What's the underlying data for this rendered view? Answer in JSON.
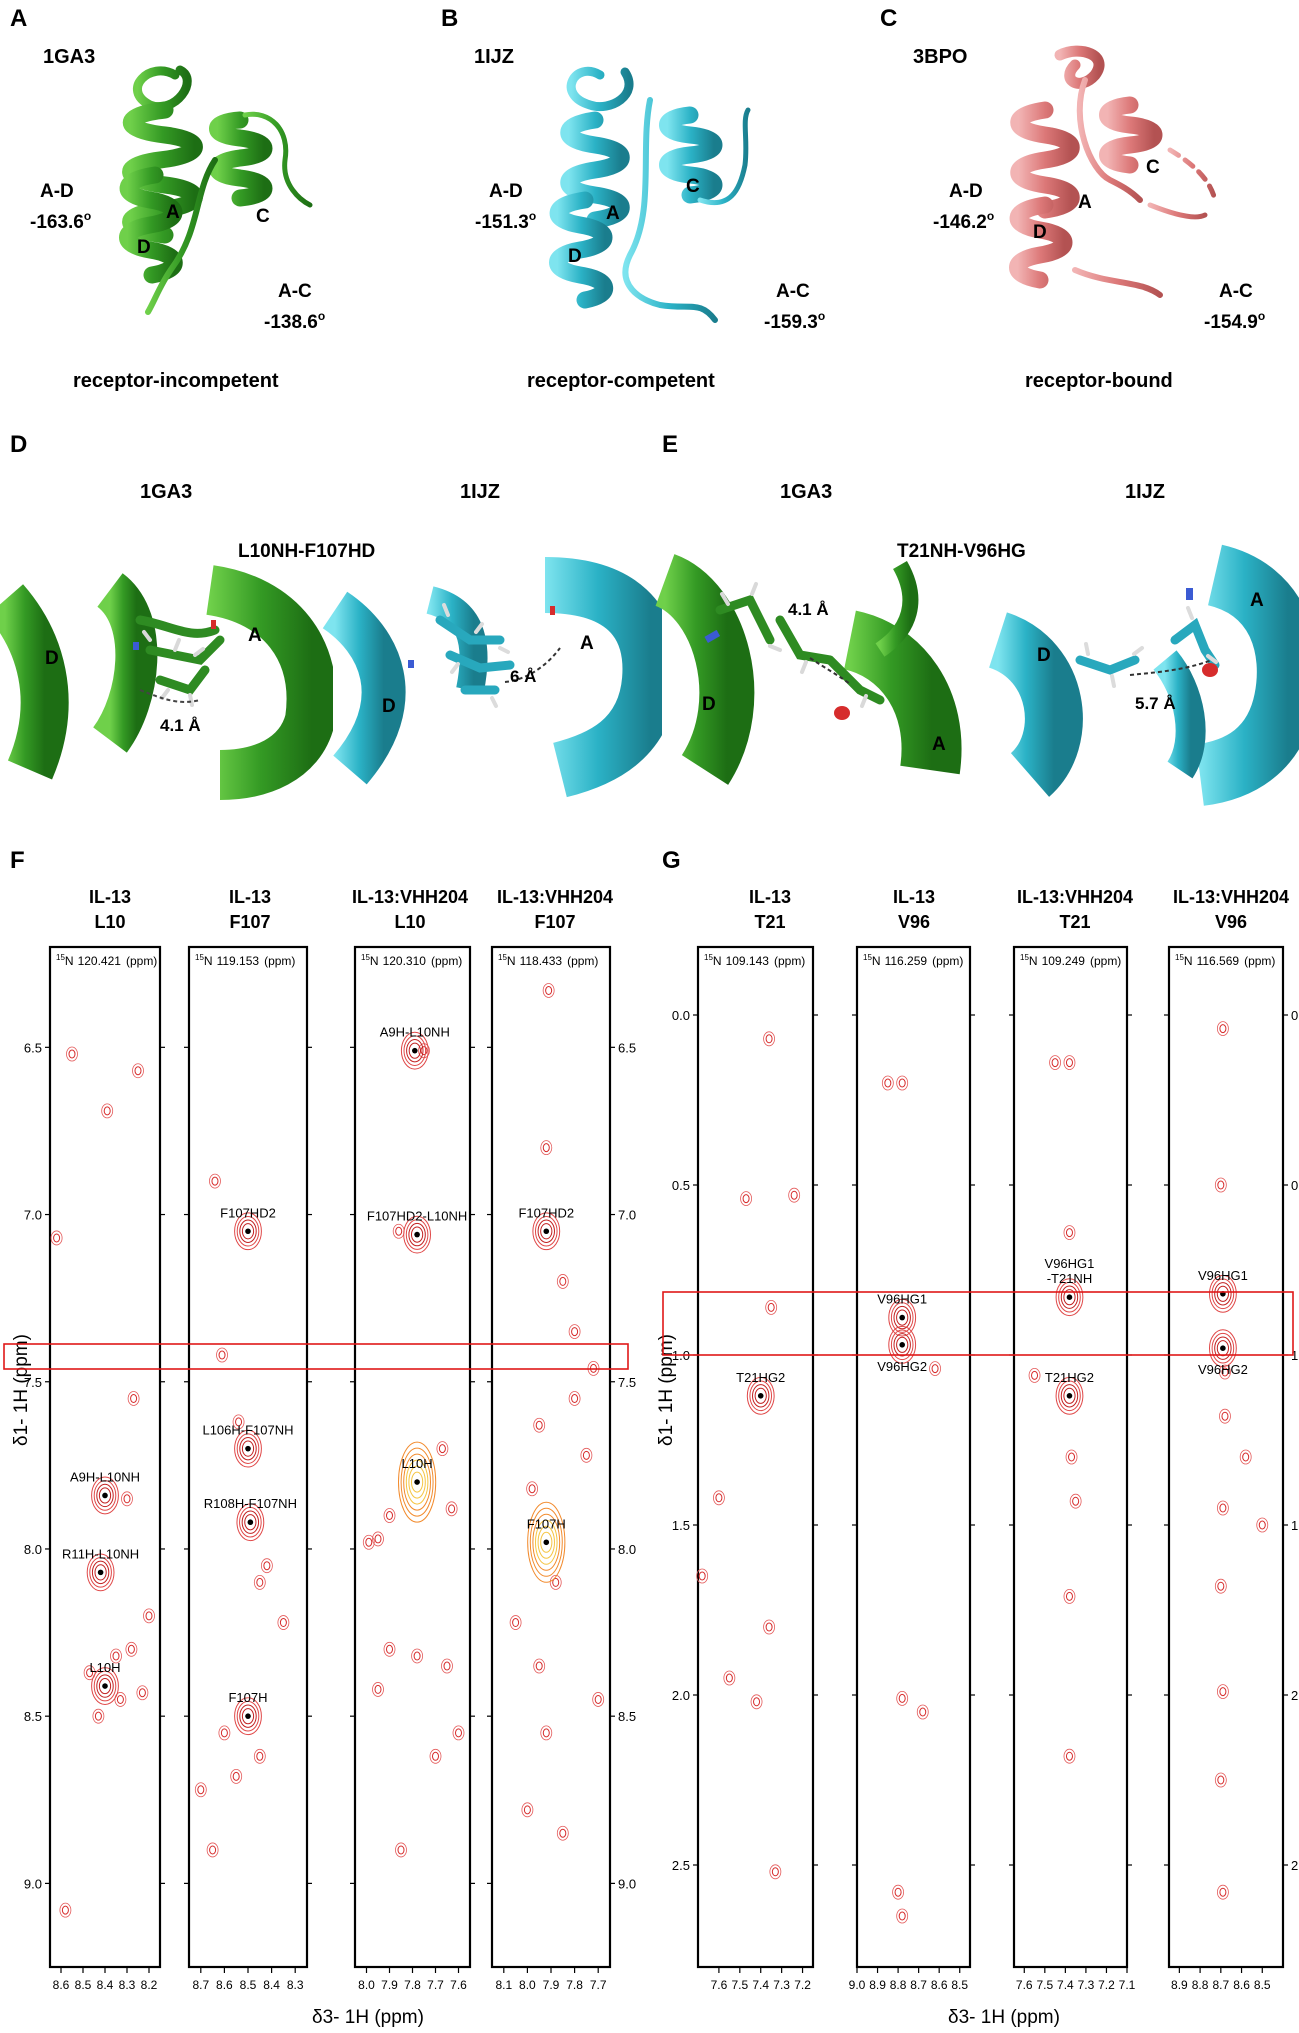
{
  "panels": {
    "A": {
      "letter": "A",
      "pdb": "1GA3",
      "ad_label": "A-D",
      "ad_angle": "-163.6",
      "ac_label": "A-C",
      "ac_angle": "-138.6",
      "state": "receptor-incompetent",
      "h_a": "A",
      "h_c": "C",
      "h_d": "D",
      "color": "#3aa32b"
    },
    "B": {
      "letter": "B",
      "pdb": "1IJZ",
      "ad_label": "A-D",
      "ad_angle": "-151.3",
      "ac_label": "A-C",
      "ac_angle": "-159.3",
      "state": "receptor-competent",
      "h_a": "A",
      "h_c": "C",
      "h_d": "D",
      "color": "#2fb4c8"
    },
    "C": {
      "letter": "C",
      "pdb": "3BPO",
      "ad_label": "A-D",
      "ad_angle": "-146.2",
      "ac_label": "A-C",
      "ac_angle": "-154.9",
      "state": "receptor-bound",
      "h_a": "A",
      "h_c": "C",
      "h_d": "D",
      "color": "#de7c7c"
    },
    "D": {
      "letter": "D",
      "left": "1GA3",
      "right": "1IJZ",
      "contact": "L10NH-F107HD",
      "dist_left": "4.1 Å",
      "dist_right": "6 Å",
      "h1": "D",
      "h2": "A"
    },
    "E": {
      "letter": "E",
      "left": "1GA3",
      "right": "1IJZ",
      "contact": "T21NH-V96HG",
      "dist_left": "4.1 Å",
      "dist_right": "5.7 Å",
      "h1": "D",
      "h2": "A"
    },
    "F": {
      "letter": "F"
    },
    "G": {
      "letter": "G"
    }
  },
  "degree": "o",
  "axes": {
    "F": {
      "y_label": "δ1- 1H (ppm)",
      "x_label": "δ3- 1H (ppm)",
      "y_ticks": [
        "6.5",
        "7.0",
        "7.5",
        "8.0",
        "8.5",
        "9.0"
      ]
    },
    "G": {
      "y_label": "δ1- 1H (ppm)",
      "x_label": "δ3- 1H (ppm)",
      "y_ticks": [
        "0.0",
        "0.5",
        "1.0",
        "1.5",
        "2.0",
        "2.5"
      ]
    }
  },
  "chart_data": [
    {
      "type": "scatter",
      "title": "F",
      "xlabel": "δ3- 1H (ppm)",
      "ylabel": "δ1- 1H (ppm)",
      "ylim": [
        9.25,
        6.2
      ],
      "strips": [
        {
          "header1": "IL-13",
          "header2": "L10",
          "n15": "120.421",
          "xlim": [
            8.65,
            8.15
          ],
          "x_ticks": [
            "8.6",
            "8.5",
            "8.4",
            "8.3",
            "8.2"
          ],
          "peaks": [
            {
              "label": "A9H-L10NH",
              "x": 8.4,
              "y": 7.84
            },
            {
              "label": "R11H-L10NH",
              "x": 8.42,
              "y": 8.07
            },
            {
              "label": "L10H",
              "x": 8.4,
              "y": 8.41
            }
          ],
          "extra_peaks": [
            [
              8.39,
              6.69
            ],
            [
              8.55,
              6.52
            ],
            [
              8.25,
              6.57
            ],
            [
              8.27,
              7.55
            ],
            [
              8.2,
              8.2
            ],
            [
              8.28,
              8.3
            ],
            [
              8.35,
              8.32
            ],
            [
              8.33,
              8.45
            ],
            [
              8.43,
              8.5
            ],
            [
              8.47,
              8.37
            ],
            [
              8.23,
              8.43
            ],
            [
              8.58,
              9.08
            ],
            [
              8.62,
              7.07
            ],
            [
              8.3,
              7.85
            ]
          ]
        },
        {
          "header1": "IL-13",
          "header2": "F107",
          "n15": "119.153",
          "xlim": [
            8.75,
            8.25
          ],
          "x_ticks": [
            "8.7",
            "8.6",
            "8.5",
            "8.4",
            "8.3"
          ],
          "peaks": [
            {
              "label": "F107HD2",
              "x": 8.5,
              "y": 7.05
            },
            {
              "label": "L106H-F107NH",
              "x": 8.5,
              "y": 7.7
            },
            {
              "label": "R108H-F107NH",
              "x": 8.49,
              "y": 7.92
            },
            {
              "label": "F107H",
              "x": 8.5,
              "y": 8.5
            }
          ],
          "extra_peaks": [
            [
              8.64,
              6.9
            ],
            [
              8.61,
              7.42
            ],
            [
              8.54,
              7.62
            ],
            [
              8.42,
              8.05
            ],
            [
              8.45,
              8.1
            ],
            [
              8.35,
              8.22
            ],
            [
              8.6,
              8.55
            ],
            [
              8.7,
              8.72
            ],
            [
              8.65,
              8.9
            ],
            [
              8.45,
              8.62
            ],
            [
              8.55,
              8.68
            ]
          ]
        },
        {
          "header1": "IL-13:VHH204",
          "header2": "L10",
          "n15": "120.310",
          "xlim": [
            8.05,
            7.55
          ],
          "x_ticks": [
            "8.0",
            "7.9",
            "7.8",
            "7.7",
            "7.6"
          ],
          "peaks": [
            {
              "label": "A9H-L10NH",
              "x": 7.79,
              "y": 6.51
            },
            {
              "label": "F107HD2-L10NH",
              "x": 7.78,
              "y": 7.06
            },
            {
              "label": "L10H",
              "x": 7.78,
              "y": 7.8
            }
          ],
          "extra_peaks": [
            [
              7.75,
              6.51
            ],
            [
              7.86,
              7.05
            ],
            [
              7.9,
              7.9
            ],
            [
              7.95,
              7.97
            ],
            [
              7.99,
              7.98
            ],
            [
              7.67,
              7.7
            ],
            [
              7.63,
              7.88
            ],
            [
              7.65,
              8.35
            ],
            [
              7.78,
              8.32
            ],
            [
              7.95,
              8.42
            ],
            [
              7.7,
              8.62
            ],
            [
              7.85,
              8.9
            ],
            [
              7.6,
              8.55
            ],
            [
              7.9,
              8.3
            ]
          ]
        },
        {
          "header1": "IL-13:VHH204",
          "header2": "F107",
          "n15": "118.433",
          "xlim": [
            8.15,
            7.65
          ],
          "x_ticks": [
            "8.1",
            "8.0",
            "7.9",
            "7.8",
            "7.7"
          ],
          "peaks": [
            {
              "label": "F107HD2",
              "x": 7.92,
              "y": 7.05
            },
            {
              "label": "F107H",
              "x": 7.92,
              "y": 7.98
            }
          ],
          "extra_peaks": [
            [
              7.91,
              6.33
            ],
            [
              7.92,
              6.8
            ],
            [
              7.85,
              7.2
            ],
            [
              7.8,
              7.35
            ],
            [
              7.72,
              7.46
            ],
            [
              7.8,
              7.55
            ],
            [
              7.95,
              7.63
            ],
            [
              7.75,
              7.72
            ],
            [
              7.98,
              7.82
            ],
            [
              7.88,
              8.1
            ],
            [
              8.05,
              8.22
            ],
            [
              7.95,
              8.35
            ],
            [
              7.7,
              8.45
            ],
            [
              7.92,
              8.55
            ],
            [
              7.85,
              8.85
            ],
            [
              8.0,
              8.78
            ]
          ]
        }
      ]
    },
    {
      "type": "scatter",
      "title": "G",
      "xlabel": "δ3- 1H (ppm)",
      "ylabel": "δ1- 1H (ppm)",
      "ylim": [
        2.8,
        -0.2
      ],
      "strips": [
        {
          "header1": "IL-13",
          "header2": "T21",
          "n15": "109.143",
          "xlim": [
            7.7,
            7.15
          ],
          "x_ticks": [
            "7.6",
            "7.5",
            "7.4",
            "7.3",
            "7.2"
          ],
          "peaks": [
            {
              "label": "T21HG2",
              "x": 7.4,
              "y": 1.12
            }
          ],
          "extra_peaks": [
            [
              7.36,
              0.07
            ],
            [
              7.47,
              0.54
            ],
            [
              7.24,
              0.53
            ],
            [
              7.35,
              0.86
            ],
            [
              7.6,
              1.42
            ],
            [
              7.55,
              1.95
            ],
            [
              7.42,
              2.02
            ],
            [
              7.36,
              1.8
            ],
            [
              7.33,
              2.52
            ],
            [
              7.68,
              1.65
            ]
          ]
        },
        {
          "header1": "IL-13",
          "header2": "V96",
          "n15": "116.259",
          "xlim": [
            9.0,
            8.45
          ],
          "x_ticks": [
            "9.0",
            "8.9",
            "8.8",
            "8.7",
            "8.6",
            "8.5"
          ],
          "peaks": [
            {
              "label": "V96HG1",
              "x": 8.78,
              "y": 0.89
            },
            {
              "label": "V96HG2",
              "x": 8.78,
              "y": 0.97
            }
          ],
          "extra_peaks": [
            [
              8.85,
              0.2
            ],
            [
              8.78,
              0.2
            ],
            [
              8.62,
              1.04
            ],
            [
              8.78,
              2.01
            ],
            [
              8.68,
              2.05
            ],
            [
              8.78,
              2.65
            ],
            [
              8.8,
              2.58
            ]
          ]
        },
        {
          "header1": "IL-13:VHH204",
          "header2": "T21",
          "n15": "109.249",
          "xlim": [
            7.65,
            7.1
          ],
          "x_ticks": [
            "7.6",
            "7.5",
            "7.4",
            "7.3",
            "7.2",
            "7.1"
          ],
          "peaks": [
            {
              "label": "V96HG1\n-T21NH",
              "x": 7.38,
              "y": 0.83
            },
            {
              "label": "T21HG2",
              "x": 7.38,
              "y": 1.12
            }
          ],
          "extra_peaks": [
            [
              7.45,
              0.14
            ],
            [
              7.38,
              0.14
            ],
            [
              7.38,
              0.64
            ],
            [
              7.37,
              1.3
            ],
            [
              7.35,
              1.43
            ],
            [
              7.38,
              1.71
            ],
            [
              7.38,
              2.18
            ],
            [
              7.55,
              1.06
            ]
          ]
        },
        {
          "header1": "IL-13:VHH204",
          "header2": "V96",
          "n15": "116.569",
          "xlim": [
            8.95,
            8.4
          ],
          "x_ticks": [
            "8.9",
            "8.8",
            "8.7",
            "8.6",
            "8.5"
          ],
          "peaks": [
            {
              "label": "V96HG1",
              "x": 8.69,
              "y": 0.82
            },
            {
              "label": "V96HG2",
              "x": 8.69,
              "y": 0.98
            }
          ],
          "extra_peaks": [
            [
              8.69,
              0.04
            ],
            [
              8.7,
              0.5
            ],
            [
              8.68,
              1.05
            ],
            [
              8.68,
              1.18
            ],
            [
              8.58,
              1.3
            ],
            [
              8.69,
              1.45
            ],
            [
              8.5,
              1.5
            ],
            [
              8.7,
              1.68
            ],
            [
              8.69,
              1.99
            ],
            [
              8.7,
              2.25
            ],
            [
              8.69,
              2.58
            ]
          ]
        }
      ]
    }
  ]
}
